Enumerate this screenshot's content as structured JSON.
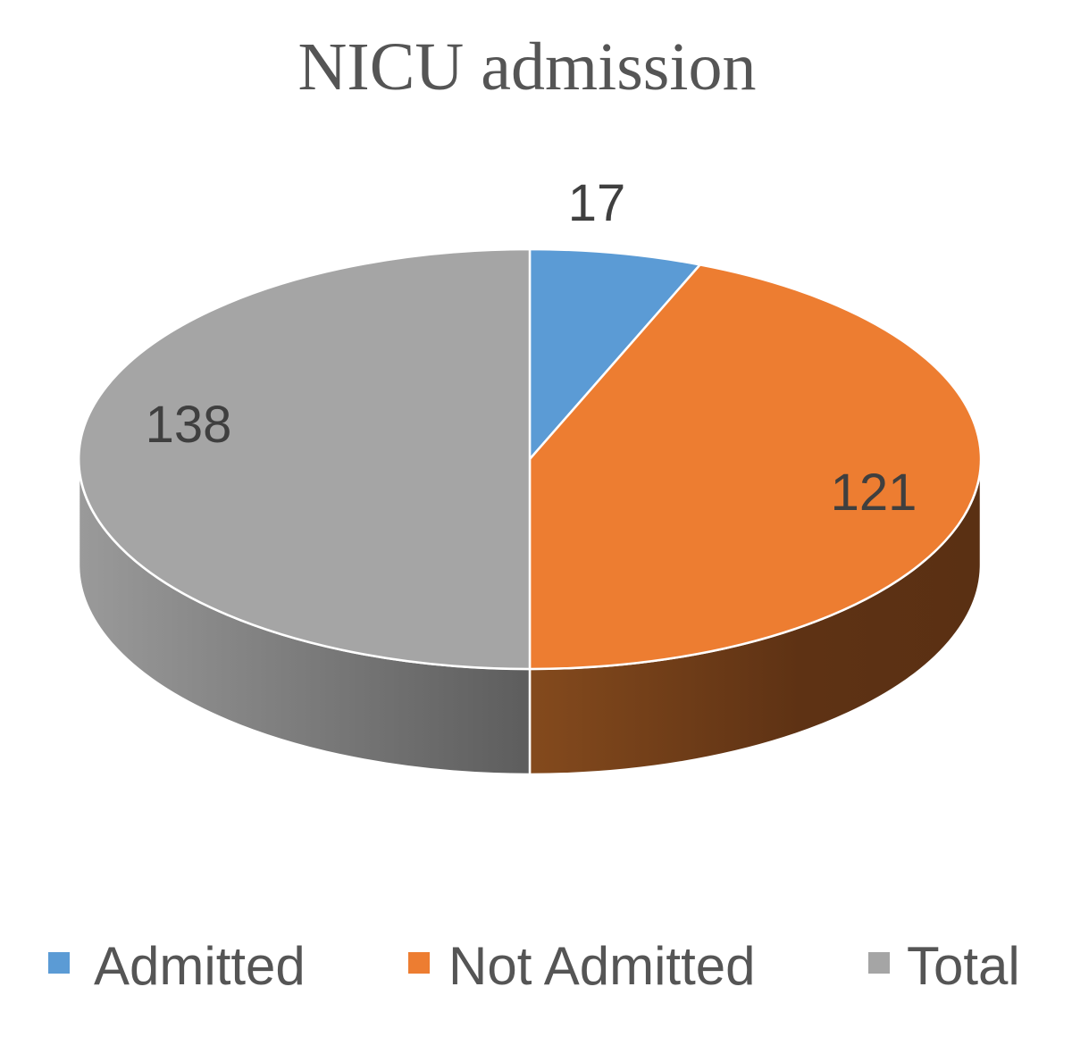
{
  "chart_data": {
    "type": "pie",
    "style": "3d",
    "title": "NICU admission",
    "categories": [
      "Admitted",
      "Not Admitted",
      "Total"
    ],
    "values": [
      17,
      121,
      138
    ],
    "data_labels": [
      "17",
      "121",
      "138"
    ],
    "colors": [
      "#5b9bd5",
      "#ed7d31",
      "#a5a5a5"
    ],
    "legend": {
      "position": "bottom",
      "entries": [
        "Admitted",
        "Not Admitted",
        "Total"
      ]
    }
  }
}
